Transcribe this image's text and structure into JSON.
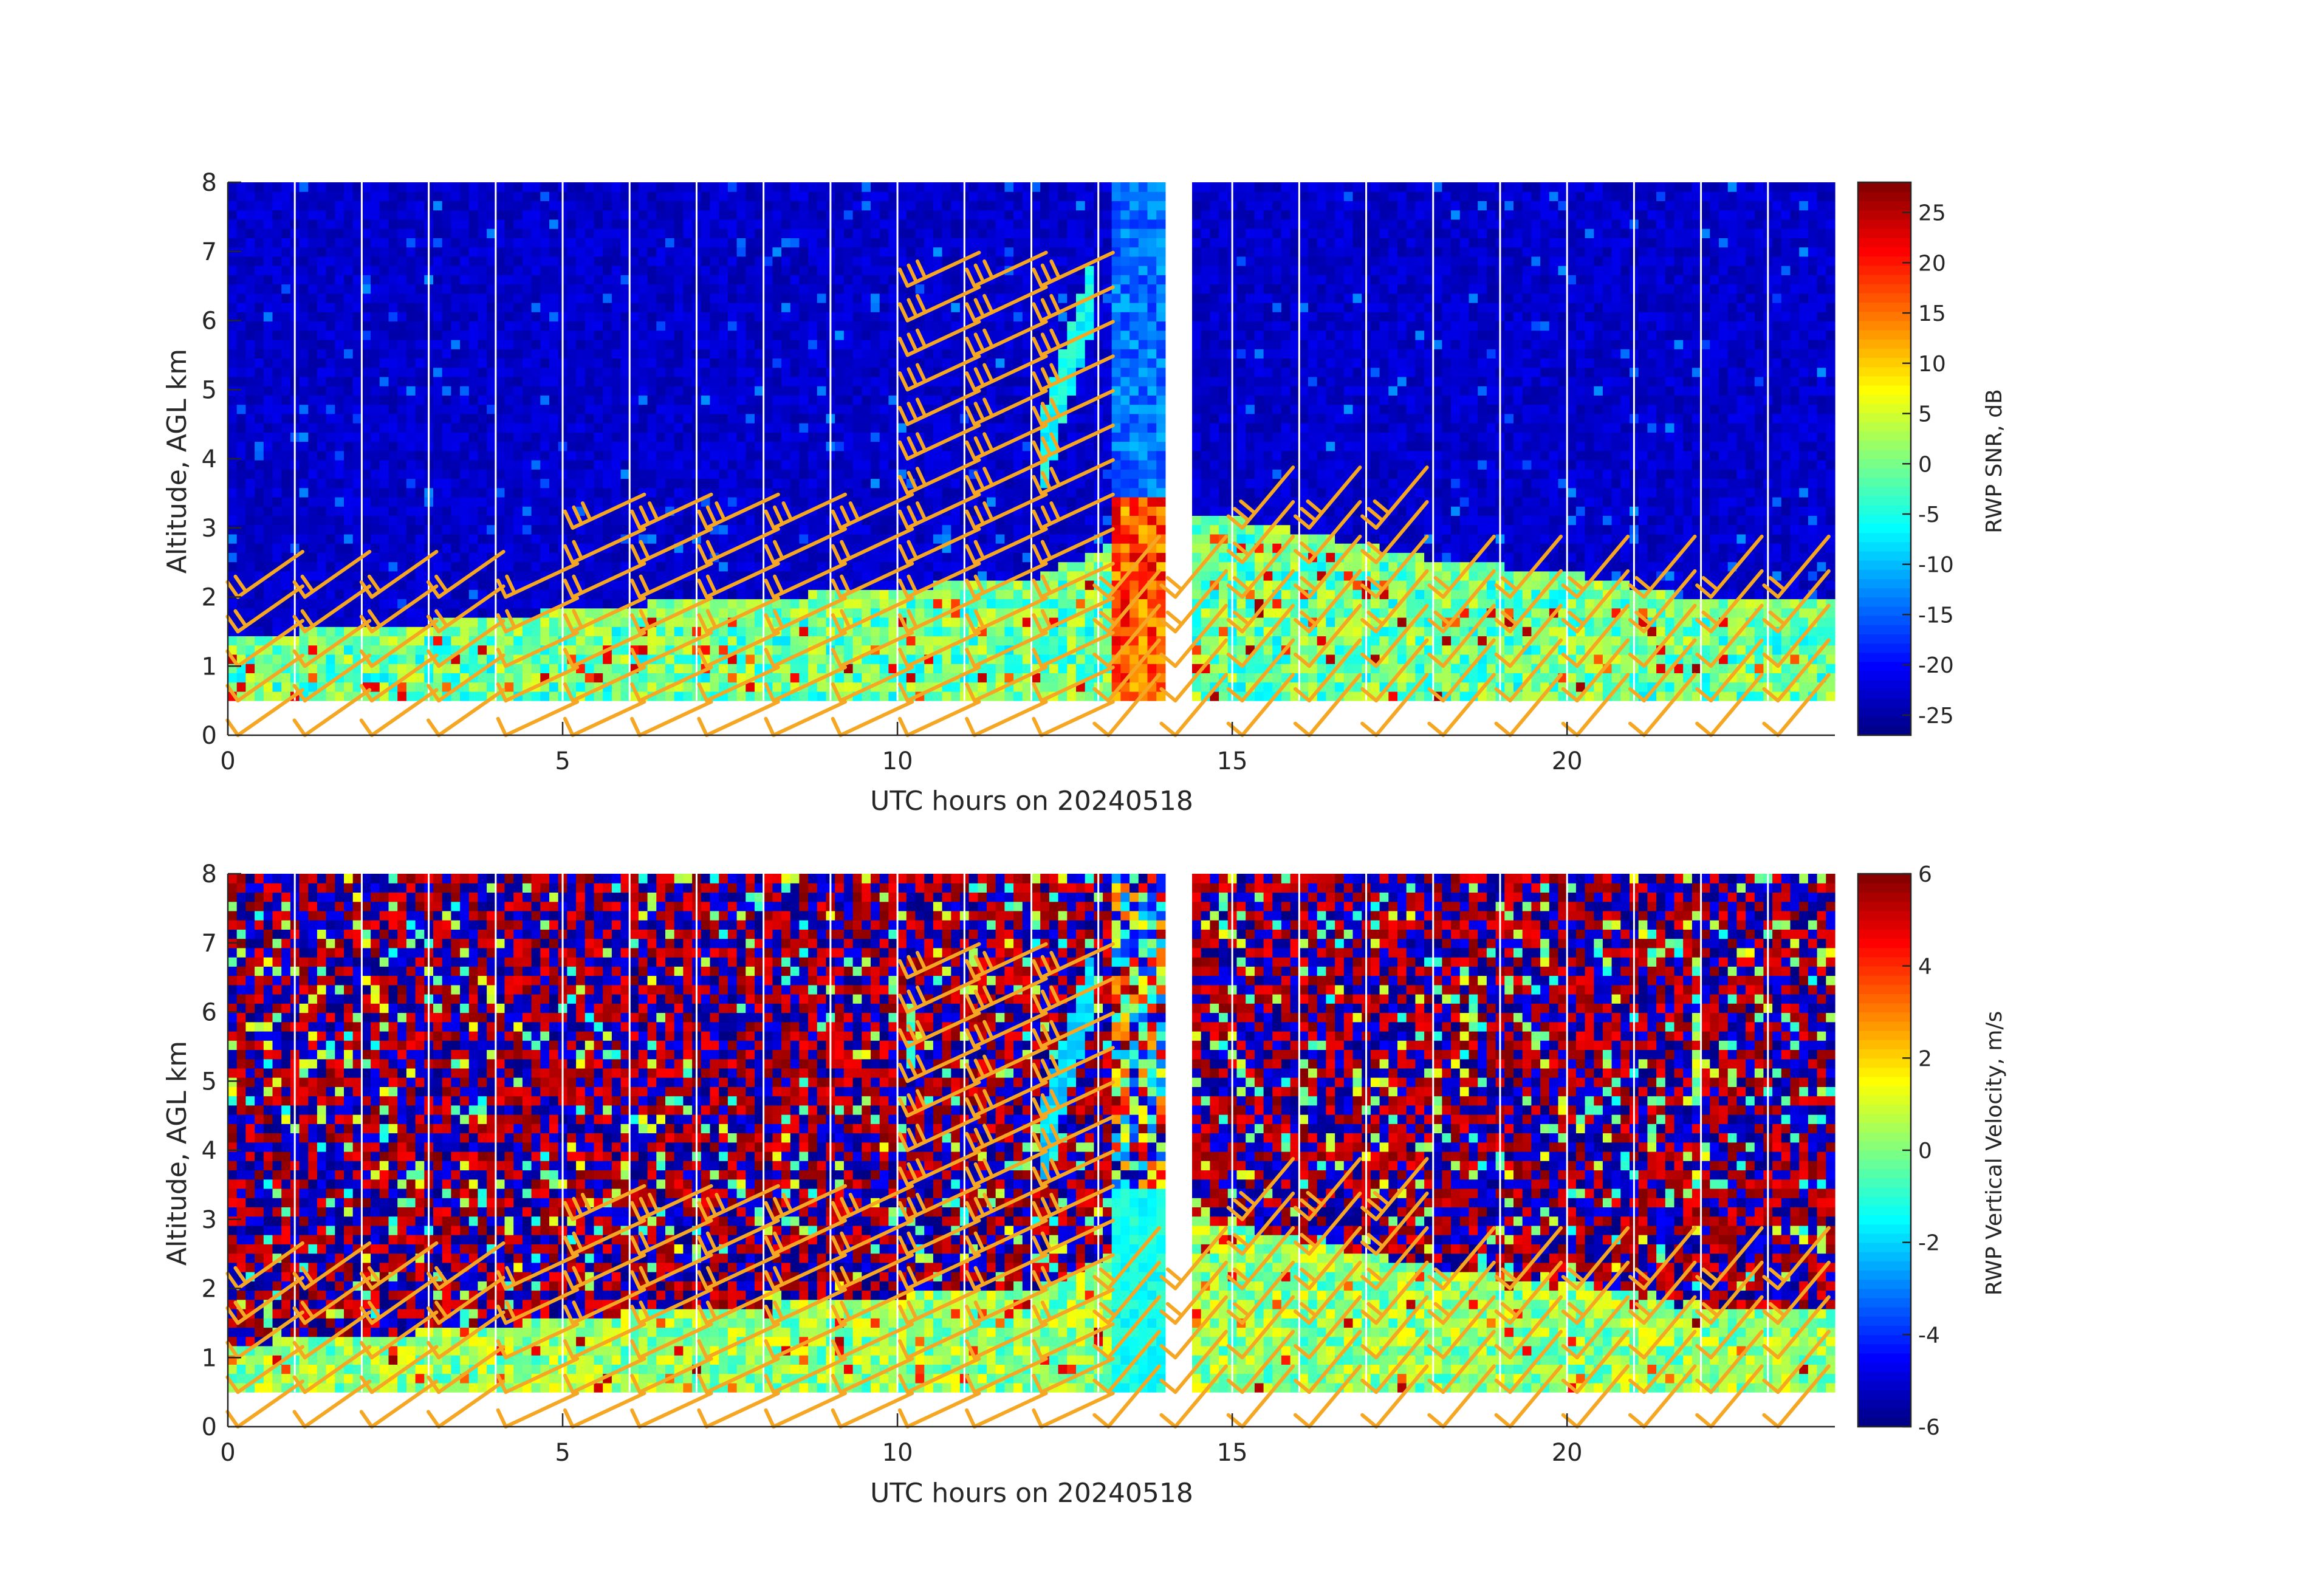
{
  "chart_data": [
    {
      "type": "heatmap",
      "title": "",
      "xlabel": "UTC hours on 20240518",
      "ylabel": "Altitude, AGL km",
      "xlim": [
        0,
        24
      ],
      "ylim": [
        0,
        8
      ],
      "x_ticks": [
        "0",
        "5",
        "10",
        "15",
        "20"
      ],
      "y_ticks": [
        "0",
        "1",
        "2",
        "3",
        "4",
        "5",
        "6",
        "7",
        "8"
      ],
      "colorbar": {
        "label": "RWP SNR, dB",
        "range": [
          -27,
          28
        ],
        "ticks": [
          "-25",
          "-20",
          "-15",
          "-10",
          "-5",
          "0",
          "5",
          "10",
          "15",
          "20",
          "25"
        ]
      },
      "colormap": "jet",
      "data_gap_hours": [
        13.95,
        14.45
      ],
      "data_min_altitude_km": 0.5,
      "boundary_layer_top_km": [
        [
          0,
          1.2
        ],
        [
          2,
          1.3
        ],
        [
          5,
          1.55
        ],
        [
          7.5,
          1.75
        ],
        [
          9,
          1.8
        ],
        [
          10,
          1.9
        ],
        [
          12,
          2.0
        ],
        [
          13.2,
          2.5
        ],
        [
          14.5,
          3.0
        ],
        [
          15.5,
          2.8
        ],
        [
          17,
          2.5
        ],
        [
          18,
          2.3
        ],
        [
          20,
          2.1
        ],
        [
          21,
          1.9
        ],
        [
          22,
          1.7
        ],
        [
          24,
          1.7
        ]
      ],
      "feature": "Elevated return layer rising from about 3.5 km near hour 12.2 to 6.5 km near hour 13"
    },
    {
      "type": "heatmap",
      "title": "",
      "xlabel": "UTC hours on 20240518",
      "ylabel": "Altitude, AGL km",
      "xlim": [
        0,
        24
      ],
      "ylim": [
        0,
        8
      ],
      "x_ticks": [
        "0",
        "5",
        "10",
        "15",
        "20"
      ],
      "y_ticks": [
        "0",
        "1",
        "2",
        "3",
        "4",
        "5",
        "6",
        "7",
        "8"
      ],
      "colorbar": {
        "label": "RWP Vertical Velocity, m/s",
        "range": [
          -6,
          6
        ],
        "ticks": [
          "-6",
          "-4",
          "-2",
          "0",
          "2",
          "4",
          "6"
        ]
      },
      "colormap": "jet",
      "data_gap_hours": [
        13.95,
        14.45
      ],
      "data_min_altitude_km": 0.5
    }
  ],
  "wind_barbs": {
    "color": "#f5a623",
    "times": [
      0,
      1,
      2,
      3,
      4,
      5,
      6,
      7,
      8,
      9,
      10,
      11,
      12,
      13,
      14,
      15,
      16,
      17,
      18,
      19,
      20,
      21,
      22,
      23
    ],
    "altitude_spacing_km": 0.5
  }
}
